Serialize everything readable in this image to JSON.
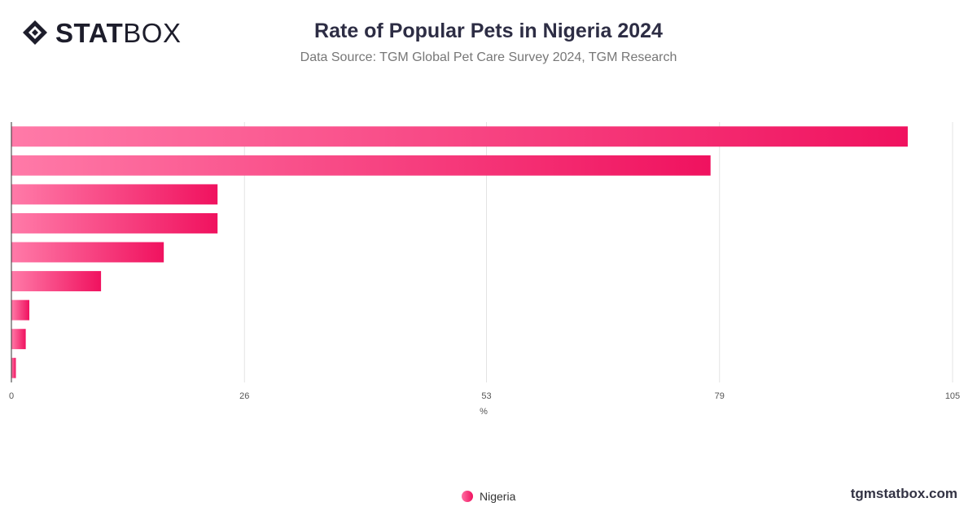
{
  "brand": {
    "name_bold": "STAT",
    "name_light": "BOX",
    "site": "tgmstatbox.com"
  },
  "colors": {
    "bar_start": "#ff7aa8",
    "bar_end": "#f0125f",
    "grid": "#e3e3e3",
    "axis": "#333333"
  },
  "chart_data": {
    "type": "bar",
    "orientation": "horizontal",
    "title": "Rate of Popular Pets in Nigeria 2024",
    "subtitle": "Data Source: TGM Global Pet Care Survey 2024, TGM Research",
    "xlabel": "%",
    "xlim": [
      0,
      105
    ],
    "xticks": [
      0,
      26,
      53,
      79,
      105
    ],
    "grid": true,
    "legend_position": "bottom-center",
    "series": [
      {
        "name": "Nigeria",
        "values": [
          100,
          78,
          23,
          23,
          17,
          10,
          2,
          1.6,
          0.5
        ]
      }
    ]
  }
}
